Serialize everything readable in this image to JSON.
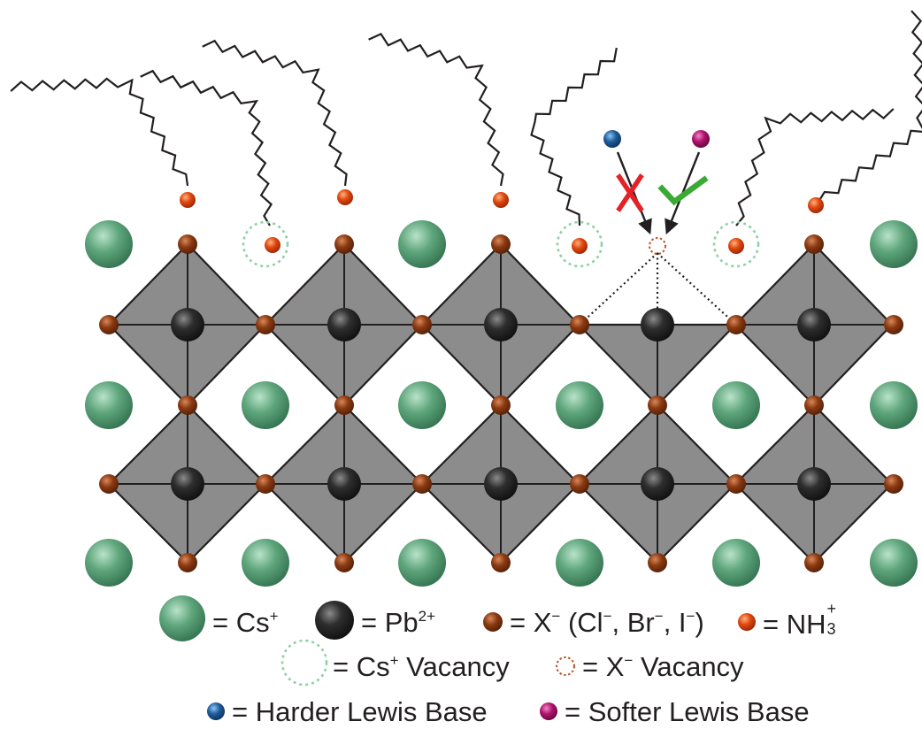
{
  "colors": {
    "cs": "#5ea57c",
    "pb": "#2b2b2b",
    "x": "#8a3a12",
    "nh3": "#d8420f",
    "octahedron": "#8c8c8c",
    "cs_vacancy_ring": "#8fd0a6",
    "x_vacancy_ring": "#b5562a",
    "harder_base": "#1e5c9c",
    "softer_base": "#b0126e",
    "cross": "#e32227",
    "check": "#3aaa35",
    "ligand": "#231f20"
  },
  "icons": {
    "cross": "cross-mark-icon",
    "check": "check-mark-icon"
  },
  "legend": {
    "cs_label": "= Cs",
    "cs_charge": "+",
    "pb_label": "= Pb",
    "pb_charge": "2+",
    "x_label": "= X",
    "x_charge": "−",
    "x_paren_open": "(Cl",
    "x_cl_charge": "−",
    "x_br": ", Br",
    "x_br_charge": "−",
    "x_i": ", I",
    "x_i_charge": "−",
    "x_paren_close": ")",
    "nh3_label": "= NH",
    "nh3_sub": "3",
    "nh3_charge": "+",
    "cs_vac_label": "= Cs",
    "cs_vac_charge": "+",
    "cs_vac_word": " Vacancy",
    "x_vac_label": "= X",
    "x_vac_charge": "−",
    "x_vac_word": " Vacancy",
    "harder_label": "= Harder Lewis Base",
    "softer_label": "= Softer Lewis Base"
  }
}
